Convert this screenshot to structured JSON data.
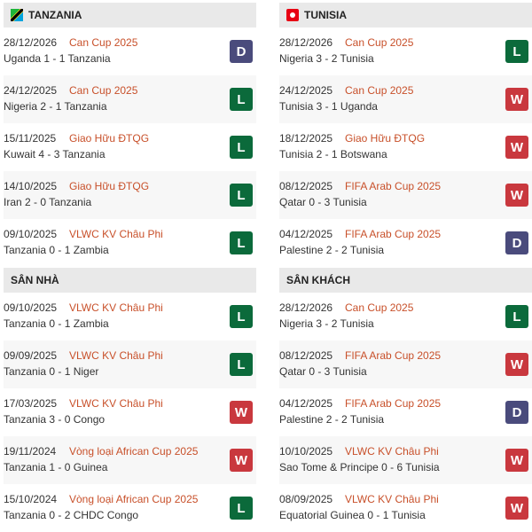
{
  "colors": {
    "D": "#4a4b7c",
    "L": "#0b6a3b",
    "W": "#c9383e",
    "competition": "#c8502a"
  },
  "sections": [
    {
      "title": "TANZANIA",
      "flag": "tanzania-flag",
      "matches": [
        {
          "date": "28/12/2026",
          "competition": "Can Cup 2025",
          "match": "Uganda 1 - 1 Tanzania",
          "result": "D"
        },
        {
          "date": "24/12/2025",
          "competition": "Can Cup 2025",
          "match": "Nigeria 2 - 1 Tanzania",
          "result": "L"
        },
        {
          "date": "15/11/2025",
          "competition": "Giao Hữu ĐTQG",
          "match": "Kuwait 4 - 3 Tanzania",
          "result": "L"
        },
        {
          "date": "14/10/2025",
          "competition": "Giao Hữu ĐTQG",
          "match": "Iran 2 - 0 Tanzania",
          "result": "L"
        },
        {
          "date": "09/10/2025",
          "competition": "VLWC KV Châu Phi",
          "match": "Tanzania 0 - 1 Zambia",
          "result": "L"
        }
      ]
    },
    {
      "title": "TUNISIA",
      "flag": "tunisia-flag",
      "matches": [
        {
          "date": "28/12/2026",
          "competition": "Can Cup 2025",
          "match": "Nigeria 3 - 2 Tunisia",
          "result": "L"
        },
        {
          "date": "24/12/2025",
          "competition": "Can Cup 2025",
          "match": "Tunisia 3 - 1 Uganda",
          "result": "W"
        },
        {
          "date": "18/12/2025",
          "competition": "Giao Hữu ĐTQG",
          "match": "Tunisia 2 - 1 Botswana",
          "result": "W"
        },
        {
          "date": "08/12/2025",
          "competition": "FIFA Arab Cup 2025",
          "match": "Qatar 0 - 3 Tunisia",
          "result": "W"
        },
        {
          "date": "04/12/2025",
          "competition": "FIFA Arab Cup 2025",
          "match": "Palestine 2 - 2 Tunisia",
          "result": "D"
        }
      ]
    },
    {
      "title": "SÂN NHÀ",
      "matches": [
        {
          "date": "09/10/2025",
          "competition": "VLWC KV Châu Phi",
          "match": "Tanzania 0 - 1 Zambia",
          "result": "L"
        },
        {
          "date": "09/09/2025",
          "competition": "VLWC KV Châu Phi",
          "match": "Tanzania 0 - 1 Niger",
          "result": "L"
        },
        {
          "date": "17/03/2025",
          "competition": "VLWC KV Châu Phi",
          "match": "Tanzania 3 - 0 Congo",
          "result": "W"
        },
        {
          "date": "19/11/2024",
          "competition": "Vòng loại African Cup 2025",
          "match": "Tanzania 1 - 0 Guinea",
          "result": "W"
        },
        {
          "date": "15/10/2024",
          "competition": "Vòng loại African Cup 2025",
          "match": "Tanzania 0 - 2 CHDC Congo",
          "result": "L"
        }
      ]
    },
    {
      "title": "SÂN KHÁCH",
      "matches": [
        {
          "date": "28/12/2026",
          "competition": "Can Cup 2025",
          "match": "Nigeria 3 - 2 Tunisia",
          "result": "L"
        },
        {
          "date": "08/12/2025",
          "competition": "FIFA Arab Cup 2025",
          "match": "Qatar 0 - 3 Tunisia",
          "result": "W"
        },
        {
          "date": "04/12/2025",
          "competition": "FIFA Arab Cup 2025",
          "match": "Palestine 2 - 2 Tunisia",
          "result": "D"
        },
        {
          "date": "10/10/2025",
          "competition": "VLWC KV Châu Phi",
          "match": "Sao Tome & Principe 0 - 6 Tunisia",
          "result": "W"
        },
        {
          "date": "08/09/2025",
          "competition": "VLWC KV Châu Phi",
          "match": "Equatorial Guinea 0 - 1 Tunisia",
          "result": "W"
        }
      ]
    }
  ]
}
